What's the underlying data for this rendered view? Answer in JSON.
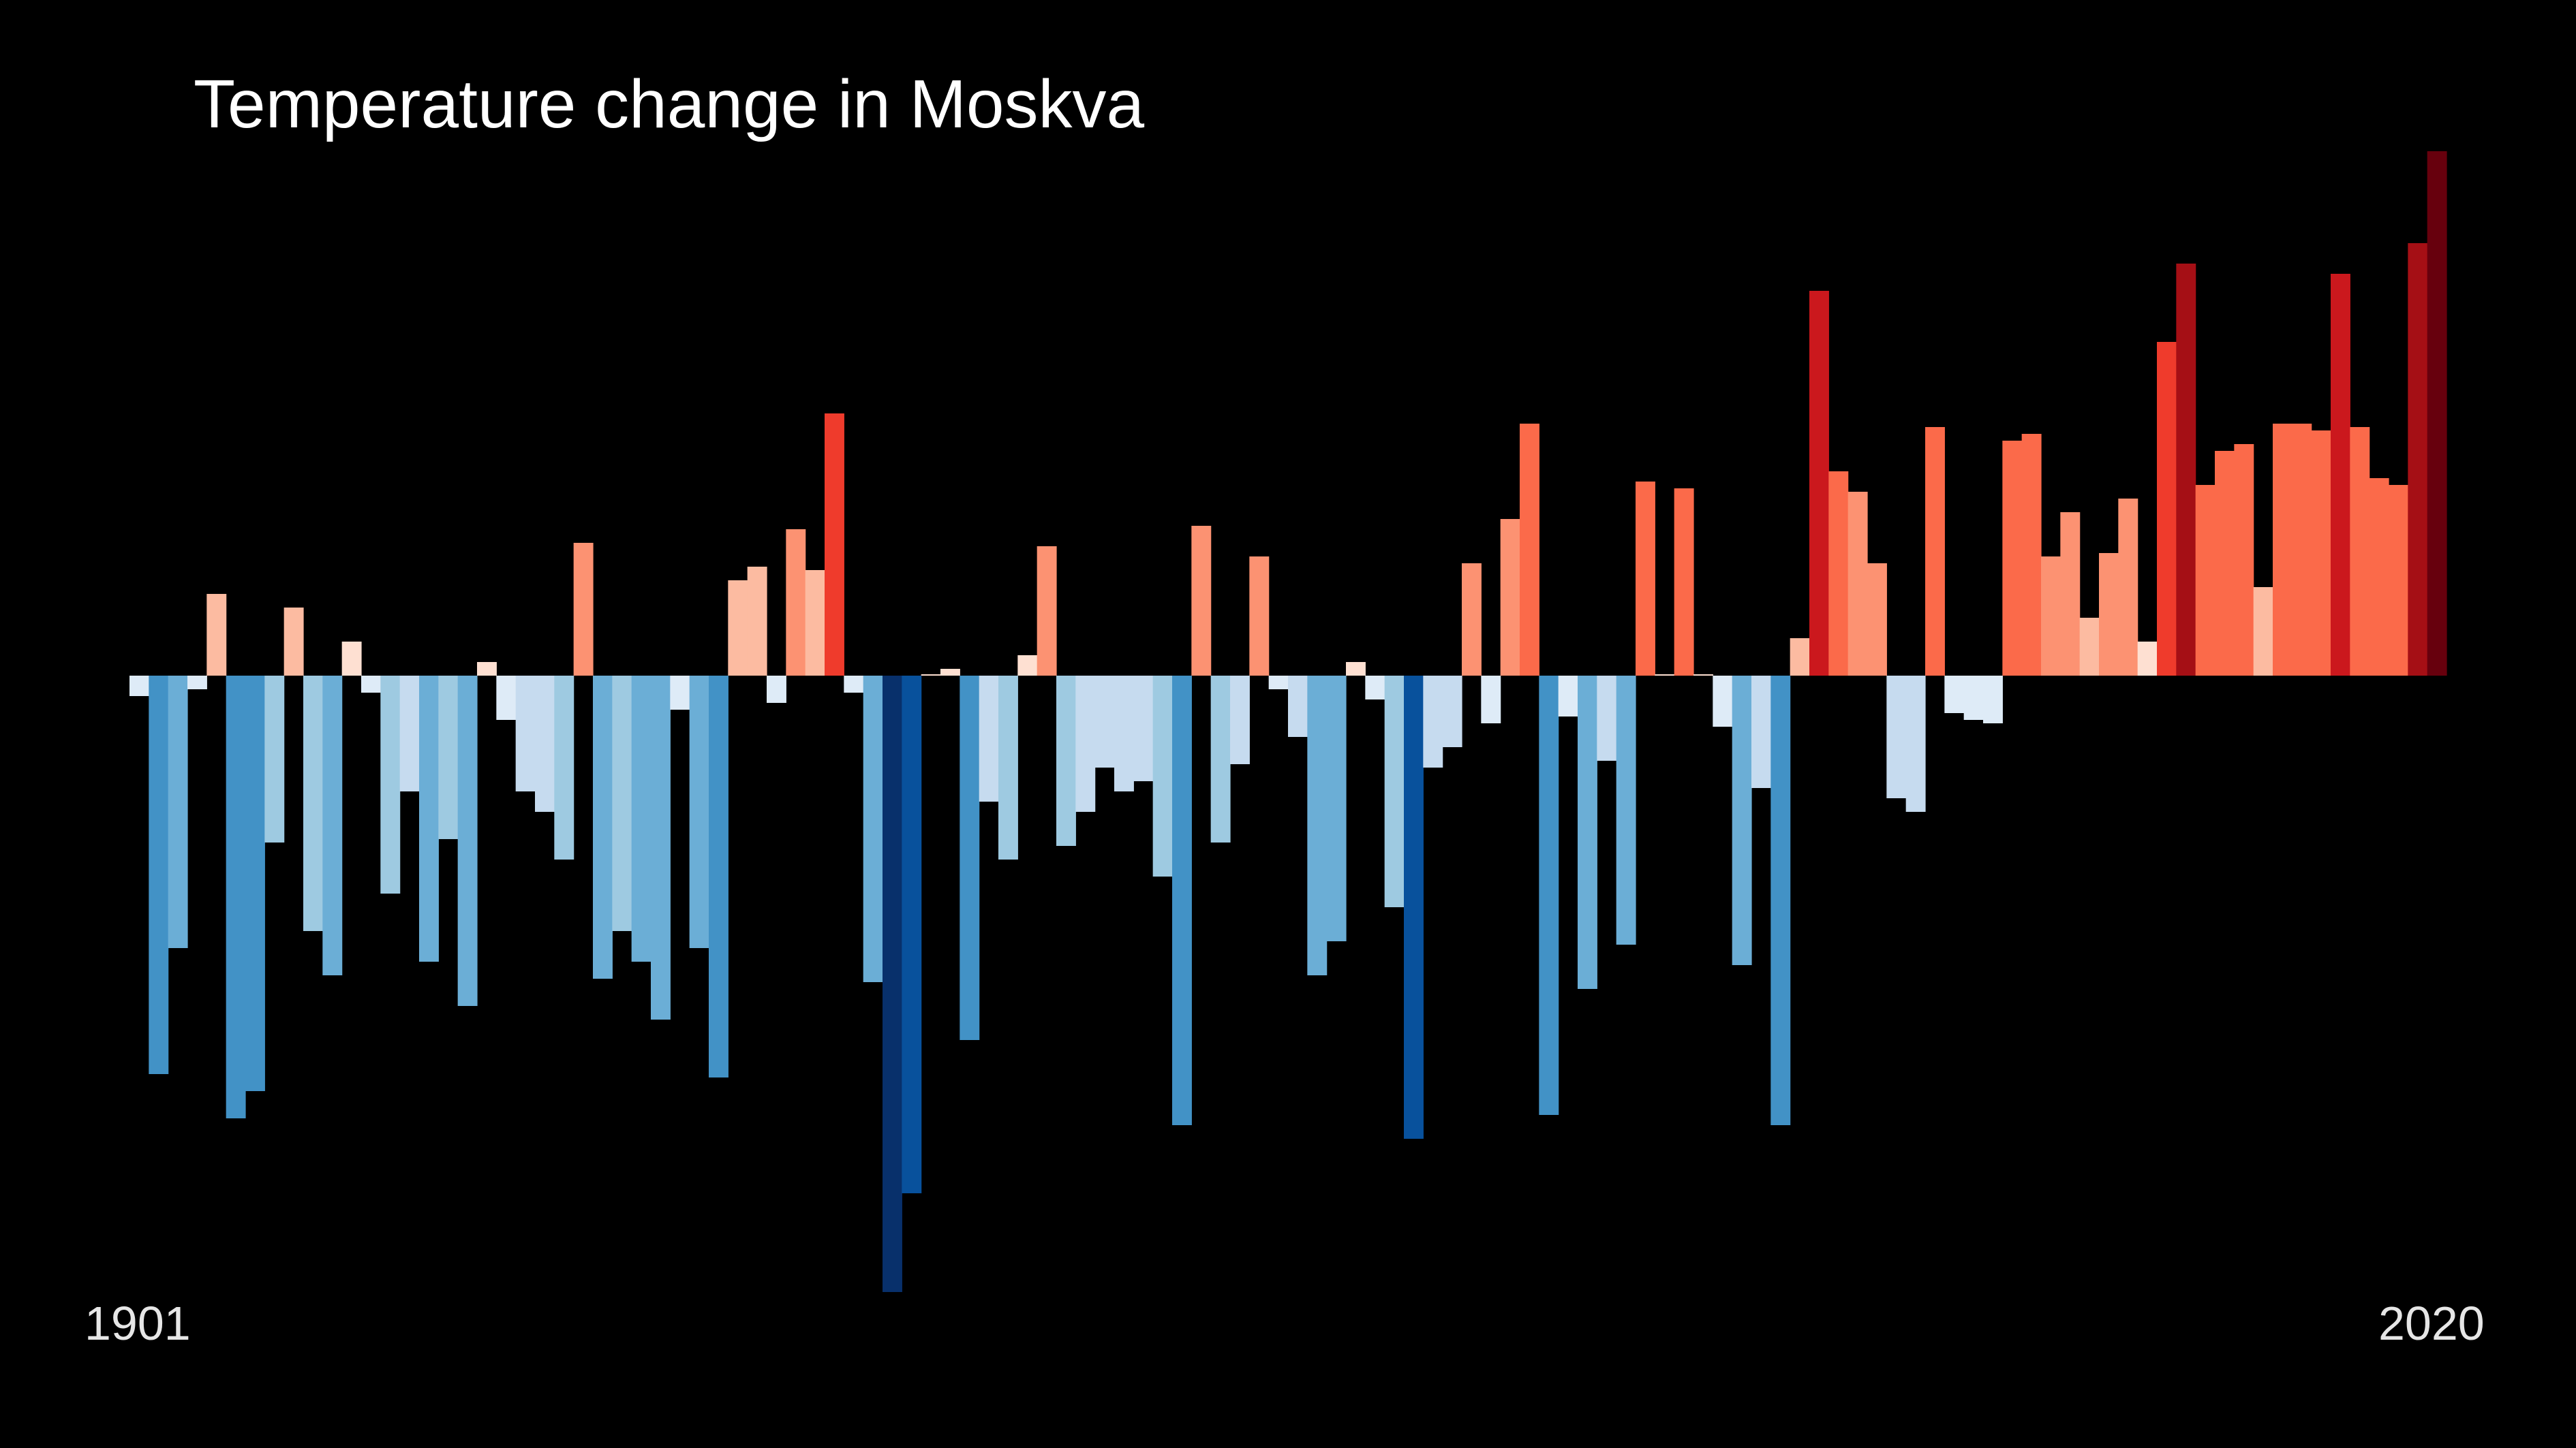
{
  "chart_data": {
    "type": "bar",
    "title": "Temperature change in Moskva",
    "x_start_label": "1901",
    "x_end_label": "2020",
    "x_start": 1901,
    "x_end": 2020,
    "xlabel": "",
    "ylabel": "",
    "ylim": [
      -1.8,
      1.53
    ],
    "grid": false,
    "color_scale": [
      "#08306b",
      "#08519c",
      "#4292c6",
      "#6baed6",
      "#9ecae1",
      "#c6dbef",
      "#deebf7",
      "#fee0d2",
      "#fcbba1",
      "#fc9272",
      "#fb6a4a",
      "#ef3b2c",
      "#cb181d",
      "#a50f15",
      "#67000d"
    ],
    "values": [
      -0.06,
      -1.17,
      -0.8,
      -0.04,
      0.24,
      -1.3,
      -1.22,
      -0.49,
      0.2,
      -0.75,
      -0.88,
      0.1,
      -0.05,
      -0.64,
      -0.34,
      -0.84,
      -0.48,
      -0.97,
      0.04,
      -0.13,
      -0.34,
      -0.4,
      -0.54,
      0.39,
      -0.89,
      -0.75,
      -0.84,
      -1.01,
      -0.1,
      -0.8,
      -1.18,
      0.28,
      0.32,
      -0.08,
      0.43,
      0.31,
      0.77,
      -0.05,
      -0.9,
      -1.81,
      -1.52,
      0.0,
      0.02,
      -1.07,
      -0.37,
      -0.54,
      0.06,
      0.38,
      -0.5,
      -0.4,
      -0.27,
      -0.34,
      -0.31,
      -0.59,
      -1.32,
      0.44,
      -0.49,
      -0.26,
      0.35,
      -0.04,
      -0.18,
      -0.88,
      -0.78,
      0.04,
      -0.07,
      -0.68,
      -1.36,
      -0.27,
      -0.21,
      0.33,
      -0.14,
      0.46,
      0.74,
      -1.29,
      -0.12,
      -0.92,
      -0.25,
      -0.79,
      0.57,
      0.0,
      0.55,
      0.0,
      -0.15,
      -0.85,
      -0.33,
      -1.32,
      0.11,
      1.13,
      0.6,
      0.54,
      0.33,
      -0.36,
      -0.4,
      0.73,
      -0.11,
      -0.13,
      -0.14,
      0.69,
      0.71,
      0.35,
      0.48,
      0.17,
      0.36,
      0.52,
      0.1,
      0.98,
      1.21,
      0.56,
      0.66,
      0.68,
      0.26,
      0.74,
      0.74,
      0.72,
      1.18,
      0.73,
      0.58,
      0.56,
      1.27,
      1.54
    ]
  }
}
